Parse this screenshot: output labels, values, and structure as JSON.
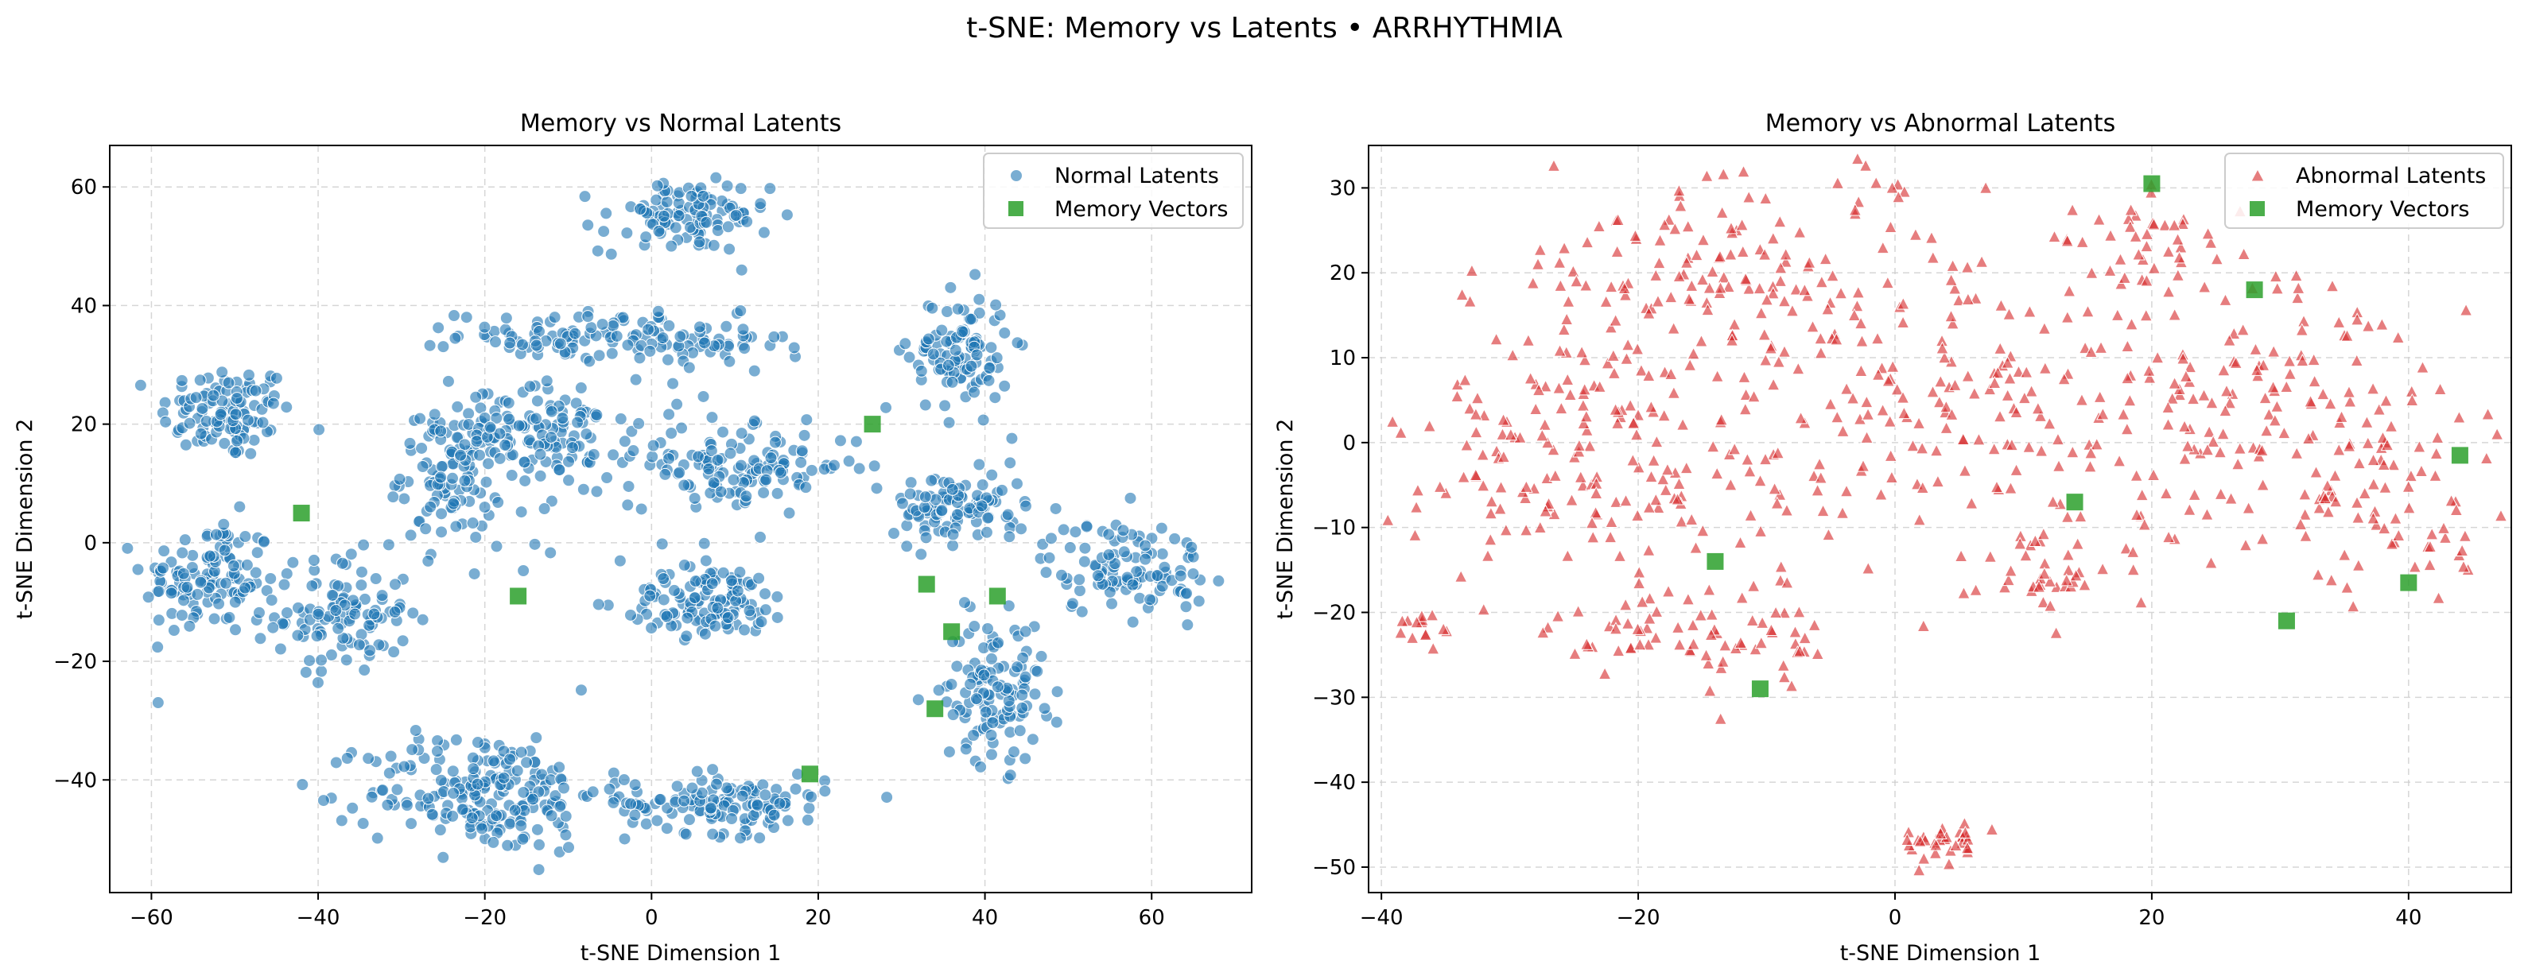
{
  "figure": {
    "title": "t-SNE: Memory vs Latents • ARRHYTHMIA"
  },
  "colors": {
    "normal": "#1f77b4",
    "abnormal": "#d62728",
    "memory": "#2ca02c",
    "grid": "#cccccc"
  },
  "chart_data": [
    {
      "type": "scatter",
      "title": "Memory vs Normal Latents",
      "xlabel": "t-SNE Dimension 1",
      "ylabel": "t-SNE Dimension 2",
      "xlim": [
        -65,
        72
      ],
      "ylim": [
        -59,
        67
      ],
      "xticks": [
        -60,
        -40,
        -20,
        0,
        20,
        40,
        60
      ],
      "yticks": [
        -40,
        -20,
        0,
        20,
        40,
        60
      ],
      "grid": true,
      "legend_position": "top-right",
      "latent_clusters": [
        {
          "cx": -51,
          "cy": 22,
          "sx": 4,
          "sy": 4,
          "n": 110
        },
        {
          "cx": -53,
          "cy": -6,
          "sx": 4,
          "sy": 5,
          "n": 120
        },
        {
          "cx": -37,
          "cy": -12,
          "sx": 4,
          "sy": 5,
          "n": 110
        },
        {
          "cx": -24,
          "cy": 12,
          "sx": 3,
          "sy": 6,
          "n": 120
        },
        {
          "cx": -12,
          "cy": 18,
          "sx": 5,
          "sy": 4,
          "n": 110
        },
        {
          "cx": -9,
          "cy": 35,
          "sx": 7,
          "sy": 2,
          "n": 90
        },
        {
          "cx": 4,
          "cy": 55,
          "sx": 5,
          "sy": 3,
          "n": 110
        },
        {
          "cx": 6,
          "cy": 33,
          "sx": 5,
          "sy": 2.5,
          "n": 50
        },
        {
          "cx": -20,
          "cy": -42,
          "sx": 7,
          "sy": 5,
          "n": 210
        },
        {
          "cx": 7,
          "cy": -10,
          "sx": 5,
          "sy": 3,
          "n": 120
        },
        {
          "cx": 9,
          "cy": -44,
          "sx": 6,
          "sy": 2.5,
          "n": 130
        },
        {
          "cx": 11,
          "cy": 13,
          "sx": 7,
          "sy": 3,
          "n": 120
        },
        {
          "cx": 37,
          "cy": 32,
          "sx": 3,
          "sy": 5,
          "n": 110
        },
        {
          "cx": 37,
          "cy": 6,
          "sx": 4,
          "sy": 3,
          "n": 100
        },
        {
          "cx": 41,
          "cy": -25,
          "sx": 3,
          "sy": 6,
          "n": 120
        },
        {
          "cx": 57,
          "cy": -4,
          "sx": 5,
          "sy": 4,
          "n": 110
        },
        {
          "cx": -3,
          "cy": 5,
          "sx": 10,
          "sy": 15,
          "n": 30
        }
      ],
      "series": [
        {
          "name": "Normal Latents",
          "marker": "circle",
          "color": "#1f77b4"
        },
        {
          "name": "Memory Vectors",
          "marker": "square",
          "color": "#2ca02c",
          "points": [
            [
              -42,
              5
            ],
            [
              -16,
              -9
            ],
            [
              19,
              -39
            ],
            [
              26.5,
              20
            ],
            [
              33,
              -7
            ],
            [
              36,
              -15
            ],
            [
              41.5,
              -9
            ],
            [
              34,
              -28
            ]
          ]
        }
      ]
    },
    {
      "type": "scatter",
      "title": "Memory vs Abnormal Latents",
      "xlabel": "t-SNE Dimension 1",
      "ylabel": "t-SNE Dimension 2",
      "xlim": [
        -41,
        48
      ],
      "ylim": [
        -53,
        35
      ],
      "xticks": [
        -40,
        -20,
        0,
        20,
        40
      ],
      "yticks": [
        -50,
        -40,
        -30,
        -20,
        -10,
        0,
        10,
        20,
        30
      ],
      "grid": true,
      "legend_position": "top-right",
      "latent_clusters": [
        {
          "cx": -25,
          "cy": 5,
          "sx": 6,
          "sy": 9,
          "n": 110
        },
        {
          "cx": -14,
          "cy": 20,
          "sx": 6,
          "sy": 6,
          "n": 90
        },
        {
          "cx": -2,
          "cy": 10,
          "sx": 7,
          "sy": 10,
          "n": 110
        },
        {
          "cx": -14,
          "cy": -5,
          "sx": 6,
          "sy": 5,
          "n": 50
        },
        {
          "cx": -18,
          "cy": -22,
          "sx": 4,
          "sy": 3,
          "n": 50
        },
        {
          "cx": -10,
          "cy": -24,
          "sx": 3,
          "sy": 3,
          "n": 25
        },
        {
          "cx": -36,
          "cy": -22,
          "sx": 1.5,
          "sy": 1.5,
          "n": 15
        },
        {
          "cx": 4,
          "cy": -47,
          "sx": 1.5,
          "sy": 1.2,
          "n": 35
        },
        {
          "cx": 12,
          "cy": 3,
          "sx": 6,
          "sy": 7,
          "n": 80
        },
        {
          "cx": 12,
          "cy": -15,
          "sx": 4,
          "sy": 3,
          "n": 40
        },
        {
          "cx": 20,
          "cy": 24,
          "sx": 3,
          "sy": 3,
          "n": 40
        },
        {
          "cx": 27,
          "cy": 4,
          "sx": 6,
          "sy": 9,
          "n": 120
        },
        {
          "cx": 38,
          "cy": -5,
          "sx": 5,
          "sy": 8,
          "n": 90
        },
        {
          "cx": -30,
          "cy": -5,
          "sx": 4,
          "sy": 5,
          "n": 40
        }
      ],
      "series": [
        {
          "name": "Abnormal Latents",
          "marker": "triangle",
          "color": "#d62728"
        },
        {
          "name": "Memory Vectors",
          "marker": "square",
          "color": "#2ca02c",
          "points": [
            [
              20,
              30.5
            ],
            [
              28,
              18
            ],
            [
              44,
              -1.5
            ],
            [
              14,
              -7
            ],
            [
              -14,
              -14
            ],
            [
              -10.5,
              -29
            ],
            [
              30.5,
              -21
            ],
            [
              40,
              -16.5
            ]
          ]
        }
      ]
    }
  ]
}
